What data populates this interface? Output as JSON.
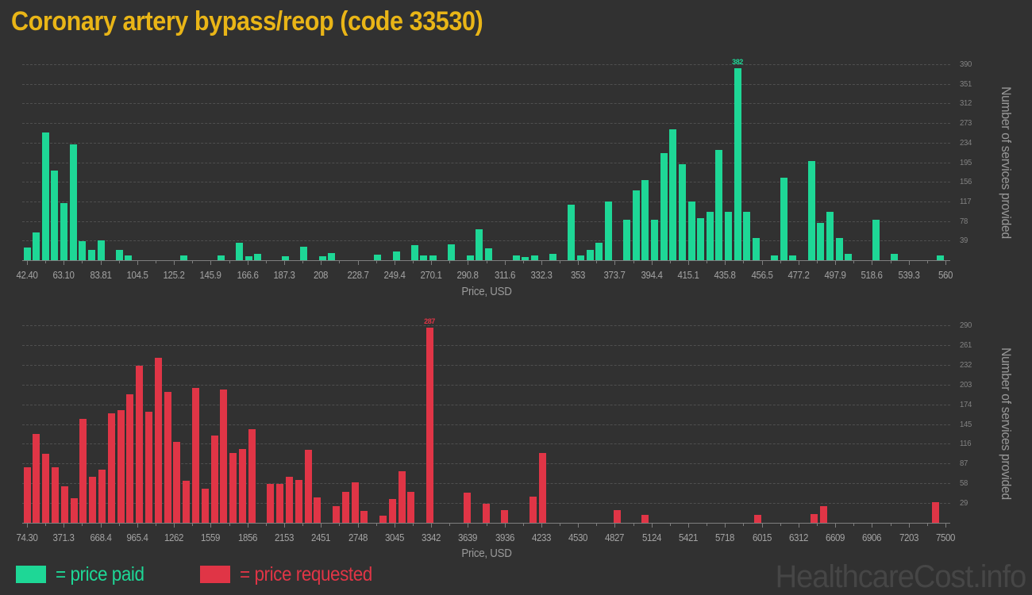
{
  "title": "Coronary artery bypass/reop (code 33530)",
  "watermark": "HealthcareCost.info",
  "colors": {
    "background": "#313131",
    "title": "#e9b517",
    "price_paid": "#1ed796",
    "price_requested": "#e03546",
    "grid": "#4f4f4f",
    "axis": "#7e7e7e",
    "x_tick_label": "#a3a3a3",
    "y_tick_label": "#828282",
    "axis_title": "#9a9a9a",
    "watermark": "#464646"
  },
  "legend": {
    "items": [
      {
        "label": "= price paid",
        "color": "#1ed796"
      },
      {
        "label": "= price requested",
        "color": "#e03546"
      }
    ]
  },
  "chart_data": [
    {
      "type": "bar",
      "series_name": "price paid",
      "color": "#1ed796",
      "xlabel": "Price, USD",
      "ylabel": "Number of services provided",
      "x_tick_labels": [
        "42.40",
        "63.10",
        "83.81",
        "104.5",
        "125.2",
        "145.9",
        "166.6",
        "187.3",
        "208",
        "228.7",
        "249.4",
        "270.1",
        "290.8",
        "311.6",
        "332.3",
        "353",
        "373.7",
        "394.4",
        "415.1",
        "435.8",
        "456.5",
        "477.2",
        "497.9",
        "518.6",
        "539.3",
        "560"
      ],
      "y_tick_labels": [
        39,
        78,
        117,
        156,
        195,
        234,
        273,
        312,
        351,
        390
      ],
      "xlim": [
        42.4,
        560
      ],
      "ylim": [
        0,
        395
      ],
      "bin_slots": 100,
      "max_value_label": "382",
      "grid": "dashed-horizontal",
      "legend_position": "bottom-left",
      "bins": [
        [
          0,
          25
        ],
        [
          1,
          56
        ],
        [
          2,
          255
        ],
        [
          3,
          178
        ],
        [
          4,
          114
        ],
        [
          5,
          231
        ],
        [
          6,
          38
        ],
        [
          7,
          21
        ],
        [
          8,
          40
        ],
        [
          10,
          20
        ],
        [
          11,
          9
        ],
        [
          17,
          9
        ],
        [
          21,
          9
        ],
        [
          23,
          35
        ],
        [
          24,
          8
        ],
        [
          25,
          12
        ],
        [
          28,
          8
        ],
        [
          30,
          27
        ],
        [
          32,
          8
        ],
        [
          33,
          15
        ],
        [
          38,
          11
        ],
        [
          40,
          18
        ],
        [
          42,
          30
        ],
        [
          43,
          10
        ],
        [
          44,
          9
        ],
        [
          46,
          31
        ],
        [
          48,
          9
        ],
        [
          49,
          62
        ],
        [
          50,
          24
        ],
        [
          53,
          10
        ],
        [
          54,
          7
        ],
        [
          55,
          9
        ],
        [
          57,
          12
        ],
        [
          59,
          110
        ],
        [
          60,
          9
        ],
        [
          61,
          20
        ],
        [
          62,
          34
        ],
        [
          63,
          117
        ],
        [
          65,
          80
        ],
        [
          66,
          139
        ],
        [
          67,
          160
        ],
        [
          68,
          81
        ],
        [
          69,
          213
        ],
        [
          70,
          261
        ],
        [
          71,
          191
        ],
        [
          72,
          117
        ],
        [
          73,
          84
        ],
        [
          74,
          96
        ],
        [
          75,
          219
        ],
        [
          76,
          96
        ],
        [
          77,
          382
        ],
        [
          78,
          96
        ],
        [
          79,
          45
        ],
        [
          81,
          9
        ],
        [
          82,
          165
        ],
        [
          83,
          10
        ],
        [
          85,
          198
        ],
        [
          86,
          75
        ],
        [
          87,
          96
        ],
        [
          88,
          45
        ],
        [
          89,
          12
        ],
        [
          92,
          80
        ],
        [
          94,
          12
        ],
        [
          99,
          10
        ]
      ]
    },
    {
      "type": "bar",
      "series_name": "price requested",
      "color": "#e03546",
      "xlabel": "Price, USD",
      "ylabel": "Number of services provided",
      "x_tick_labels": [
        "74.30",
        "371.3",
        "668.4",
        "965.4",
        "1262",
        "1559",
        "1856",
        "2153",
        "2451",
        "2748",
        "3045",
        "3342",
        "3639",
        "3936",
        "4233",
        "4530",
        "4827",
        "5124",
        "5421",
        "5718",
        "6015",
        "6312",
        "6609",
        "6906",
        "7203",
        "7500"
      ],
      "y_tick_labels": [
        29,
        58,
        87,
        116,
        145,
        174,
        203,
        232,
        261,
        290
      ],
      "xlim": [
        74.3,
        7500
      ],
      "ylim": [
        0,
        295
      ],
      "bin_slots": 100,
      "max_value_label": "287",
      "grid": "dashed-horizontal",
      "legend_position": "bottom-left",
      "bins": [
        [
          0,
          82
        ],
        [
          1,
          131
        ],
        [
          2,
          101
        ],
        [
          3,
          81
        ],
        [
          4,
          54
        ],
        [
          5,
          36
        ],
        [
          6,
          152
        ],
        [
          7,
          67
        ],
        [
          8,
          78
        ],
        [
          9,
          161
        ],
        [
          10,
          165
        ],
        [
          11,
          189
        ],
        [
          12,
          231
        ],
        [
          13,
          163
        ],
        [
          14,
          242
        ],
        [
          15,
          192
        ],
        [
          16,
          119
        ],
        [
          17,
          62
        ],
        [
          18,
          198
        ],
        [
          19,
          50
        ],
        [
          20,
          128
        ],
        [
          21,
          196
        ],
        [
          22,
          102
        ],
        [
          23,
          108
        ],
        [
          24,
          137
        ],
        [
          26,
          57
        ],
        [
          27,
          57
        ],
        [
          28,
          68
        ],
        [
          29,
          63
        ],
        [
          30,
          107
        ],
        [
          31,
          37
        ],
        [
          33,
          25
        ],
        [
          34,
          46
        ],
        [
          35,
          59
        ],
        [
          36,
          17
        ],
        [
          38,
          10
        ],
        [
          39,
          35
        ],
        [
          40,
          76
        ],
        [
          41,
          45
        ],
        [
          43,
          287
        ],
        [
          47,
          44
        ],
        [
          49,
          28
        ],
        [
          51,
          19
        ],
        [
          54,
          39
        ],
        [
          55,
          103
        ],
        [
          63,
          19
        ],
        [
          66,
          12
        ],
        [
          78,
          12
        ],
        [
          84,
          13
        ],
        [
          85,
          24
        ],
        [
          97,
          30
        ]
      ]
    }
  ]
}
